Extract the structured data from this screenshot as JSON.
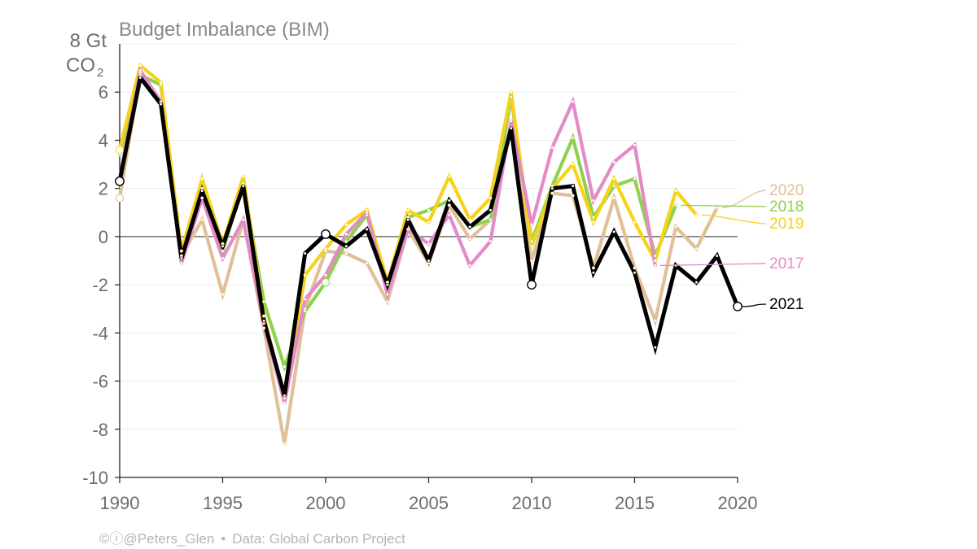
{
  "chart_data": {
    "type": "line",
    "title": "Budget Imbalance (BIM)",
    "ylabel_line1": "8 Gt",
    "ylabel_line2_main": "CO",
    "ylabel_line2_sub": "2",
    "xlim": [
      1990,
      2020
    ],
    "ylim": [
      -10,
      8
    ],
    "xticks": [
      1990,
      1995,
      2000,
      2005,
      2010,
      2015,
      2020
    ],
    "yticks": [
      -10,
      -8,
      -6,
      -4,
      -2,
      0,
      2,
      4,
      6
    ],
    "series": [
      {
        "name": "2020",
        "color": "#dfc197",
        "start": 1990,
        "values": [
          1.6,
          6.8,
          5.5,
          -0.8,
          0.7,
          -2.4,
          0.7,
          -3.8,
          -8.6,
          -3.0,
          -0.6,
          -0.7,
          -1.1,
          -2.7,
          0.3,
          -1.1,
          1.3,
          -0.1,
          0.7,
          4.5,
          -1.0,
          1.8,
          1.7,
          -1.3,
          1.6,
          -1.3,
          -3.5,
          0.4,
          -0.5,
          1.2
        ]
      },
      {
        "name": "2018",
        "color": "#8fd14f",
        "start": 1990,
        "values": [
          3.4,
          6.7,
          6.3,
          -0.9,
          2.0,
          -0.6,
          2.2,
          -2.7,
          -5.4,
          -3.1,
          -1.9,
          -0.2,
          0.9,
          -2.0,
          0.8,
          1.1,
          1.5,
          0.4,
          0.7,
          5.8,
          -0.2,
          2.1,
          4.1,
          0.8,
          2.1,
          2.4,
          -0.8,
          1.3
        ]
      },
      {
        "name": "2019",
        "color": "#f7d21a",
        "start": 1990,
        "values": [
          3.6,
          7.1,
          6.4,
          -0.6,
          2.4,
          -0.3,
          2.5,
          -3.3,
          -6.7,
          -1.6,
          -0.5,
          0.5,
          1.1,
          -1.9,
          1.1,
          0.6,
          2.5,
          0.7,
          1.6,
          6.0,
          -0.4,
          2.0,
          3.0,
          0.6,
          2.4,
          0.6,
          -1.0,
          1.9,
          0.9
        ]
      },
      {
        "name": "2017",
        "color": "#e38ac8",
        "start": 1990,
        "values": [
          2.4,
          6.9,
          5.6,
          -1.1,
          1.6,
          -0.9,
          0.7,
          -3.6,
          -6.9,
          -2.6,
          -1.6,
          0.1,
          1.0,
          -2.4,
          0.3,
          -0.3,
          0.9,
          -1.2,
          -0.2,
          4.8,
          0.5,
          3.7,
          5.6,
          1.5,
          3.1,
          3.8,
          -1.2
        ]
      },
      {
        "name": "2021",
        "color": "#000000",
        "start": 1990,
        "values": [
          2.3,
          6.6,
          5.5,
          -0.9,
          1.9,
          -0.4,
          2.1,
          -3.5,
          -6.6,
          -0.7,
          0.1,
          -0.4,
          0.3,
          -2.0,
          0.7,
          -1.0,
          1.5,
          0.4,
          1.1,
          4.5,
          -2.0,
          2.0,
          2.1,
          -1.5,
          0.2,
          -1.5,
          -4.6,
          -1.2,
          -1.9,
          -0.8,
          -2.9
        ]
      }
    ],
    "hollow_markers": [
      {
        "series": "2020",
        "x": 1990
      },
      {
        "series": "2018",
        "x": 2000
      },
      {
        "series": "2019",
        "x": 1990
      },
      {
        "series": "2021",
        "x": 1990
      },
      {
        "series": "2021",
        "x": 2000
      },
      {
        "series": "2021",
        "x": 2010
      },
      {
        "series": "2021",
        "x": 2020
      }
    ],
    "legend": [
      {
        "label": "2020",
        "color": "#dfc197"
      },
      {
        "label": "2018",
        "color": "#8fd14f"
      },
      {
        "label": "2019",
        "color": "#f7d21a"
      },
      {
        "label": "2017",
        "color": "#e38ac8"
      },
      {
        "label": "2021",
        "color": "#000000"
      }
    ]
  },
  "credit": {
    "license_icons": "©ⓘ",
    "handle": "@Peters_Glen",
    "separator": "•",
    "source": "Data: Global Carbon Project"
  }
}
